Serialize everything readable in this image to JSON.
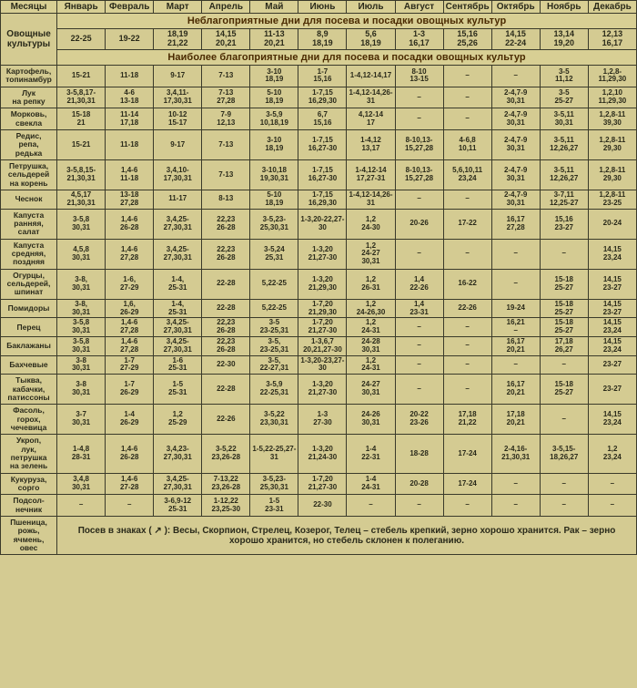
{
  "header": {
    "corner_top": "Месяцы",
    "corner_left": "Овощные культуры",
    "months": [
      "Январь",
      "Февраль",
      "Март",
      "Апрель",
      "Май",
      "Июнь",
      "Июль",
      "Август",
      "Сентябрь",
      "Октябрь",
      "Ноябрь",
      "Декабрь"
    ]
  },
  "banners": {
    "unfavorable": "Неблагоприятные дни для посева и посадки овощных культур",
    "favorable": "Наиболее благоприятные дни для посева и посадки овощных культур"
  },
  "unfavorable_days": [
    "22-25",
    "19-22",
    "18,19 21,22",
    "14,15 20,21",
    "11-13 20,21",
    "8,9 18,19",
    "5,6 18,19",
    "1-3 16,17",
    "15,16 25,26",
    "14,15 22-24",
    "13,14 19,20",
    "12,13 16,17"
  ],
  "crops": [
    {
      "name": "Картофель, топинамбур",
      "vals": [
        "15-21",
        "11-18",
        "9-17",
        "7-13",
        "3-10 18,19",
        "1-7 15,16",
        "1-4,12-14,17",
        "8-10 13-15",
        "–",
        "–",
        "3-5 11,12",
        "1,2,8-11,29,30"
      ]
    },
    {
      "name": "Лук на репку",
      "vals": [
        "3-5,8,17-21,30,31",
        "4-6 13-18",
        "3,4,11-17,30,31",
        "7-13 27,28",
        "5-10 18,19",
        "1-7,15 16,29,30",
        "1-4,12-14,26-31",
        "–",
        "–",
        "2-4,7-9 30,31",
        "3-5 25-27",
        "1,2,10 11,29,30"
      ]
    },
    {
      "name": "Морковь, свекла",
      "vals": [
        "15-18 21",
        "11-14 17,18",
        "10-12 15-17",
        "7-9 12,13",
        "3-5,9 10,18,19",
        "6,7 15,16",
        "4,12-14 17",
        "–",
        "–",
        "2-4,7-9 30,31",
        "3-5,11 30,31",
        "1,2,8-11 39,30"
      ]
    },
    {
      "name": "Редис, репа, редька",
      "vals": [
        "15-21",
        "11-18",
        "9-17",
        "7-13",
        "3-10 18,19",
        "1-7,15 16,27-30",
        "1-4,12 13,17",
        "8-10,13-15,27,28",
        "4-6,8 10,11",
        "2-4,7-9 30,31",
        "3-5,11 12,26,27",
        "1,2,8-11 29,30"
      ]
    },
    {
      "name": "Петрушка, сельдерей на корень",
      "vals": [
        "3-5,8,15-21,30,31",
        "1,4-6 11-18",
        "3,4,10-17,30,31",
        "7-13",
        "3-10,18 19,30,31",
        "1-7,15 16,27-30",
        "1-4,12-14 17,27-31",
        "8-10,13-15,27,28",
        "5,6,10,11 23,24",
        "2-4,7-9 30,31",
        "3-5,11 12,26,27",
        "1,2,8-11 29,30"
      ]
    },
    {
      "name": "Чеснок",
      "vals": [
        "4,5,17 21,30,31",
        "13-18 27,28",
        "11-17",
        "8-13",
        "5-10 18,19",
        "1-7,15 16,29,30",
        "1-4,12-14,26-31",
        "–",
        "–",
        "2-4,7-9 30,31",
        "3-7,11 12,25-27",
        "1,2,8-11 23-25"
      ]
    },
    {
      "name": "Капуста ранняя, салат",
      "vals": [
        "3-5,8 30,31",
        "1,4-6 26-28",
        "3,4,25-27,30,31",
        "22,23 26-28",
        "3-5,23-25,30,31",
        "1-3,20-22,27-30",
        "1,2 24-30",
        "20-26",
        "17-22",
        "16,17 27,28",
        "15,16 23-27",
        "20-24"
      ]
    },
    {
      "name": "Капуста средняя, поздняя",
      "vals": [
        "4,5,8 30,31",
        "1,4-6 27,28",
        "3,4,25-27,30,31",
        "22,23 26-28",
        "3-5,24 25,31",
        "1-3,20 21,27-30",
        "1,2 24-27 30,31",
        "–",
        "–",
        "–",
        "–",
        "14,15 23,24"
      ]
    },
    {
      "name": "Огурцы, сельдерей, шпинат",
      "vals": [
        "3-8, 30,31",
        "1-6, 27-29",
        "1-4, 25-31",
        "22-28",
        "5,22-25",
        "1-3,20 21,29,30",
        "1,2 26-31",
        "1,4 22-26",
        "16-22",
        "–",
        "15-18 25-27",
        "14,15 23-27"
      ]
    },
    {
      "name": "Помидоры",
      "vals": [
        "3-8, 30,31",
        "1,6, 26-29",
        "1-4, 25-31",
        "22-28",
        "5,22-25",
        "1-7,20 21,29,30",
        "1,2 24-26,30",
        "1,4 23-31",
        "22-26",
        "19-24",
        "15-18 25-27",
        "14,15 23-27"
      ]
    },
    {
      "name": "Перец",
      "vals": [
        "3-5,8 30,31",
        "1,4-6 27,28",
        "3,4,25-27,30,31",
        "22,23 26-28",
        "3-5 23-25,31",
        "1-7,20 21,27-30",
        "1,2 24-31",
        "–",
        "–",
        "16,21 –",
        "15-18 25-27",
        "14,15 23,24"
      ]
    },
    {
      "name": "Баклажаны",
      "vals": [
        "3-5,8 30,31",
        "1,4-6 27,28",
        "3,4,25-27,30,31",
        "22,23 26-28",
        "3-5, 23-25,31",
        "1-3,6,7 20,21,27-30",
        "24-28 30,31",
        "–",
        "–",
        "16,17 20,21",
        "17,18 26,27",
        "14,15 23,24"
      ]
    },
    {
      "name": "Бахчевые",
      "vals": [
        "3-8 30,31",
        "1-7 27-29",
        "1-6 25-31",
        "22-30",
        "3-5, 22-27,31",
        "1-3,20-23,27-30",
        "1,2 24-31",
        "–",
        "–",
        "–",
        "–",
        "23-27"
      ]
    },
    {
      "name": "Тыква, кабачки, патиссоны",
      "vals": [
        "3-8 30,31",
        "1-7 26-29",
        "1-5 25-31",
        "22-28",
        "3-5,9 22-25,31",
        "1-3,20 21,27-30",
        "24-27 30,31",
        "–",
        "–",
        "16,17 20,21",
        "15-18 25-27",
        "23-27"
      ]
    },
    {
      "name": "Фасоль, горох, чечевица",
      "vals": [
        "3-7 30,31",
        "1-4 26-29",
        "1,2 25-29",
        "22-26",
        "3-5,22 23,30,31",
        "1-3 27-30",
        "24-26 30,31",
        "20-22 23-26",
        "17,18 21,22",
        "17,18 20,21",
        "–",
        "14,15 23,24"
      ]
    },
    {
      "name": "Укроп, лук, петрушка на зелень",
      "vals": [
        "1-4,8 28-31",
        "1,4-6 26-28",
        "3,4,23-27,30,31",
        "3-5,22 23,26-28",
        "1-5,22-25,27-31",
        "1-3,20 21,24-30",
        "1-4 22-31",
        "18-28",
        "17-24",
        "2-4,16-21,30,31",
        "3-5,15-18,26,27",
        "1,2 23,24"
      ]
    },
    {
      "name": "Кукуруза, сорго",
      "vals": [
        "3,4,8 30,31",
        "1,4-6 27-28",
        "3,4,25-27,30,31",
        "7-13,22 23,26-28",
        "3-5,23-25,30,31",
        "1-7,20 21,27-30",
        "1-4 24-31",
        "20-28",
        "17-24",
        "–",
        "–",
        "–"
      ]
    },
    {
      "name": "Подсол-нечник",
      "vals": [
        "–",
        "–",
        "3-6,9-12 25-31",
        "1-12,22 23,25-30",
        "1-5 23-31",
        "22-30",
        "–",
        "–",
        "–",
        "–",
        "–",
        "–"
      ]
    }
  ],
  "wheat": {
    "name": "Пшеница, рожь, ячмень, овес"
  },
  "footer": "Посев в знаках ( ↗ ): Весы, Скорпион, Стрелец, Козерог, Телец – стебель крепкий, зерно хорошо хранится. Рак – зерно хорошо хранится, но стебель склонен к полеганию."
}
